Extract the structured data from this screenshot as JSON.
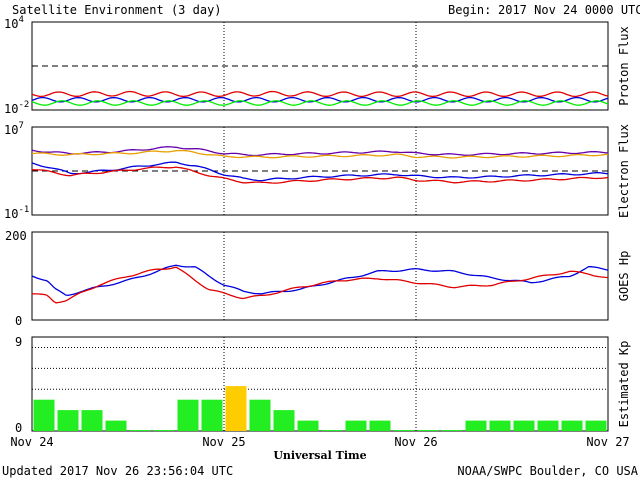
{
  "header": {
    "title": "Satellite Environment (3 day)",
    "begin_label": "Begin:",
    "begin_value": "2017 Nov 24 0000 UTC"
  },
  "footer": {
    "updated": "Updated 2017 Nov 26 23:56:04 UTC",
    "credit": "NOAA/SWPC Boulder, CO USA"
  },
  "colors": {
    "red": "#e00000",
    "blue": "#0000dd",
    "green": "#00ee00",
    "orange": "#e8a000",
    "purple": "#6600aa",
    "kp_green": "#22ee22",
    "kp_yellow": "#ffcc00"
  },
  "chart_data": [
    {
      "id": "proton",
      "type": "line",
      "ylabel": "Proton Flux",
      "yscale": "log",
      "ylim": [
        0.01,
        10000
      ],
      "y_ticks": [
        {
          "label_base": "10",
          "label_exp": "4",
          "value": 10000
        },
        {
          "label_base": "10",
          "label_exp": "-2",
          "value": 0.01
        }
      ],
      "threshold": 10,
      "grid": "dotted verticals at day boundaries",
      "series": [
        {
          "color": "red",
          "values": [
            0.12,
            0.12,
            0.13,
            0.12,
            0.12,
            0.13,
            0.12,
            0.12,
            0.12,
            0.12,
            0.12,
            0.12,
            0.12
          ]
        },
        {
          "color": "blue",
          "values": [
            0.05,
            0.05,
            0.05,
            0.05,
            0.05,
            0.05,
            0.05,
            0.05,
            0.05,
            0.05,
            0.05,
            0.05,
            0.05
          ]
        },
        {
          "color": "green",
          "values": [
            0.03,
            0.03,
            0.03,
            0.03,
            0.03,
            0.03,
            0.03,
            0.03,
            0.03,
            0.03,
            0.03,
            0.03,
            0.03
          ]
        }
      ]
    },
    {
      "id": "electron",
      "type": "line",
      "ylabel": "Electron Flux",
      "yscale": "log",
      "ylim": [
        0.1,
        10000000
      ],
      "y_ticks": [
        {
          "label_base": "10",
          "label_exp": "7",
          "value": 10000000
        },
        {
          "label_base": "10",
          "label_exp": "-1",
          "value": 0.1
        }
      ],
      "threshold": 1000,
      "series": [
        {
          "color": "purple",
          "x": [
            0,
            0.1,
            0.2,
            0.3,
            0.45,
            0.55,
            0.65,
            0.75,
            0.85,
            1.0,
            1.1,
            1.2,
            1.3,
            1.5,
            1.7,
            1.9,
            2.0,
            2.2,
            2.4,
            2.6,
            2.8,
            2.95,
            3.0
          ],
          "values": [
            80000,
            50000,
            40000,
            45000,
            60000,
            80000,
            120000,
            150000,
            100000,
            40000,
            30000,
            30000,
            35000,
            40000,
            50000,
            60000,
            40000,
            30000,
            35000,
            40000,
            45000,
            50000,
            50000
          ]
        },
        {
          "color": "orange",
          "x": [
            0,
            0.1,
            0.2,
            0.3,
            0.45,
            0.55,
            0.65,
            0.75,
            0.85,
            1.0,
            1.1,
            1.2,
            1.3,
            1.5,
            1.7,
            1.9,
            2.0,
            2.2,
            2.4,
            2.6,
            2.8,
            2.95,
            3.0
          ],
          "values": [
            40000,
            35000,
            30000,
            35000,
            40000,
            45000,
            60000,
            70000,
            50000,
            20000,
            20000,
            18000,
            20000,
            22000,
            25000,
            30000,
            20000,
            18000,
            20000,
            22000,
            25000,
            30000,
            30000
          ]
        },
        {
          "color": "blue",
          "x": [
            0,
            0.1,
            0.2,
            0.3,
            0.45,
            0.55,
            0.65,
            0.75,
            0.85,
            1.0,
            1.1,
            1.2,
            1.3,
            1.5,
            1.7,
            1.9,
            2.0,
            2.2,
            2.4,
            2.6,
            2.8,
            2.95,
            3.0
          ],
          "values": [
            5000,
            2000,
            600,
            800,
            1500,
            2500,
            4000,
            6000,
            3000,
            500,
            200,
            150,
            200,
            300,
            400,
            500,
            350,
            250,
            300,
            400,
            500,
            600,
            600
          ]
        },
        {
          "color": "red",
          "x": [
            0,
            0.1,
            0.2,
            0.3,
            0.45,
            0.55,
            0.65,
            0.75,
            0.85,
            1.0,
            1.1,
            1.2,
            1.3,
            1.5,
            1.7,
            1.9,
            2.0,
            2.2,
            2.4,
            2.6,
            2.8,
            2.95,
            3.0
          ],
          "values": [
            1500,
            800,
            400,
            600,
            1000,
            1500,
            2000,
            2500,
            800,
            200,
            100,
            80,
            100,
            150,
            200,
            250,
            150,
            100,
            120,
            150,
            200,
            250,
            250
          ]
        }
      ]
    },
    {
      "id": "hp",
      "type": "line",
      "ylabel": "GOES Hp",
      "ylim": [
        0,
        200
      ],
      "y_ticks": [
        {
          "label": "200",
          "value": 200
        },
        {
          "label": "0",
          "value": 0
        }
      ],
      "series": [
        {
          "color": "blue",
          "x": [
            0,
            0.08,
            0.12,
            0.18,
            0.25,
            0.35,
            0.5,
            0.65,
            0.75,
            0.85,
            0.92,
            1.0,
            1.1,
            1.2,
            1.4,
            1.6,
            1.8,
            2.0,
            2.2,
            2.4,
            2.6,
            2.8,
            2.9,
            3.0
          ],
          "values": [
            100,
            90,
            70,
            55,
            65,
            75,
            90,
            110,
            125,
            120,
            100,
            80,
            65,
            60,
            70,
            90,
            110,
            115,
            110,
            95,
            85,
            100,
            120,
            115
          ]
        },
        {
          "color": "red",
          "x": [
            0,
            0.08,
            0.12,
            0.18,
            0.25,
            0.35,
            0.5,
            0.65,
            0.75,
            0.85,
            0.92,
            1.0,
            1.1,
            1.2,
            1.4,
            1.6,
            1.8,
            2.0,
            2.2,
            2.4,
            2.6,
            2.8,
            2.9,
            3.0
          ],
          "values": [
            60,
            55,
            40,
            45,
            60,
            80,
            100,
            115,
            120,
            90,
            70,
            60,
            50,
            55,
            75,
            90,
            95,
            85,
            75,
            80,
            95,
            110,
            105,
            95
          ]
        }
      ]
    },
    {
      "id": "kp",
      "type": "bar",
      "ylabel": "Estimated Kp",
      "ylim": [
        0,
        9
      ],
      "y_ticks": [
        {
          "label": "9",
          "value": 9
        },
        {
          "label": "0",
          "value": 0
        }
      ],
      "dotted_levels": [
        4,
        6,
        8
      ],
      "x_ticks": [
        "Nov 24",
        "Nov 25",
        "Nov 26",
        "Nov 27"
      ],
      "xlabel": "Universal Time",
      "values": [
        3.0,
        2.0,
        2.0,
        1.0,
        0.1,
        0.1,
        3.0,
        3.0,
        4.3,
        3.0,
        2.0,
        1.0,
        0.1,
        1.0,
        1.0,
        0.1,
        0.1,
        0.1,
        1.0,
        1.0,
        1.0,
        1.0,
        1.0,
        1.0
      ],
      "bar_colors": [
        "kp_green",
        "kp_green",
        "kp_green",
        "kp_green",
        "kp_green",
        "kp_green",
        "kp_green",
        "kp_green",
        "kp_yellow",
        "kp_green",
        "kp_green",
        "kp_green",
        "kp_green",
        "kp_green",
        "kp_green",
        "kp_green",
        "kp_green",
        "kp_green",
        "kp_green",
        "kp_green",
        "kp_green",
        "kp_green",
        "kp_green",
        "kp_green"
      ]
    }
  ]
}
